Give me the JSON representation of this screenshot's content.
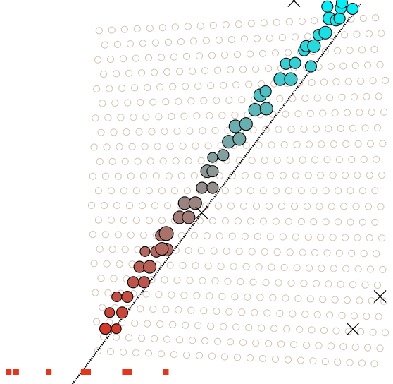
{
  "chart_data": {
    "type": "scatter",
    "title": "",
    "xlabel": "",
    "ylabel": "",
    "xlim": [
      0,
      1
    ],
    "ylim": [
      0,
      1
    ],
    "grid": false,
    "colors": {
      "ring": "#d2c2b4",
      "cluster_low": "#d43a2a",
      "cluster_mid": "#8a9a9a",
      "cluster_high": "#00f0f8",
      "rug": "#e8341a",
      "line": "#000000"
    },
    "fit_line": {
      "x": [
        0.184,
        0.918
      ],
      "y": [
        0.0,
        0.99
      ]
    },
    "cluster_points": [
      {
        "x": 0.268,
        "y": 0.144,
        "s": 8
      },
      {
        "x": 0.296,
        "y": 0.144,
        "s": 7
      },
      {
        "x": 0.279,
        "y": 0.186,
        "s": 7
      },
      {
        "x": 0.311,
        "y": 0.186,
        "s": 8
      },
      {
        "x": 0.297,
        "y": 0.227,
        "s": 7
      },
      {
        "x": 0.324,
        "y": 0.227,
        "s": 8
      },
      {
        "x": 0.339,
        "y": 0.265,
        "s": 8
      },
      {
        "x": 0.367,
        "y": 0.265,
        "s": 8
      },
      {
        "x": 0.355,
        "y": 0.305,
        "s": 8
      },
      {
        "x": 0.381,
        "y": 0.305,
        "s": 9
      },
      {
        "x": 0.369,
        "y": 0.345,
        "s": 7
      },
      {
        "x": 0.398,
        "y": 0.345,
        "s": 8
      },
      {
        "x": 0.41,
        "y": 0.387,
        "s": 8
      },
      {
        "x": 0.424,
        "y": 0.35,
        "s": 9
      },
      {
        "x": 0.423,
        "y": 0.392,
        "s": 10
      },
      {
        "x": 0.412,
        "y": 0.352,
        "s": 9
      },
      {
        "x": 0.457,
        "y": 0.434,
        "s": 9
      },
      {
        "x": 0.48,
        "y": 0.434,
        "s": 9
      },
      {
        "x": 0.47,
        "y": 0.471,
        "s": 9
      },
      {
        "x": 0.497,
        "y": 0.471,
        "s": 9
      },
      {
        "x": 0.514,
        "y": 0.511,
        "s": 8
      },
      {
        "x": 0.541,
        "y": 0.511,
        "s": 8
      },
      {
        "x": 0.527,
        "y": 0.554,
        "s": 9
      },
      {
        "x": 0.541,
        "y": 0.554,
        "s": 8
      },
      {
        "x": 0.541,
        "y": 0.59,
        "s": 7
      },
      {
        "x": 0.568,
        "y": 0.596,
        "s": 8
      },
      {
        "x": 0.582,
        "y": 0.631,
        "s": 9
      },
      {
        "x": 0.609,
        "y": 0.638,
        "s": 9
      },
      {
        "x": 0.599,
        "y": 0.671,
        "s": 9
      },
      {
        "x": 0.626,
        "y": 0.677,
        "s": 9
      },
      {
        "x": 0.649,
        "y": 0.714,
        "s": 9
      },
      {
        "x": 0.678,
        "y": 0.717,
        "s": 9
      },
      {
        "x": 0.662,
        "y": 0.752,
        "s": 9
      },
      {
        "x": 0.676,
        "y": 0.762,
        "s": 8
      },
      {
        "x": 0.713,
        "y": 0.794,
        "s": 9
      },
      {
        "x": 0.74,
        "y": 0.794,
        "s": 9
      },
      {
        "x": 0.728,
        "y": 0.834,
        "s": 8
      },
      {
        "x": 0.751,
        "y": 0.836,
        "s": 8
      },
      {
        "x": 0.774,
        "y": 0.869,
        "s": 8
      },
      {
        "x": 0.791,
        "y": 0.827,
        "s": 8
      },
      {
        "x": 0.779,
        "y": 0.88,
        "s": 8
      },
      {
        "x": 0.799,
        "y": 0.88,
        "s": 9
      },
      {
        "x": 0.811,
        "y": 0.909,
        "s": 8
      },
      {
        "x": 0.828,
        "y": 0.915,
        "s": 9
      },
      {
        "x": 0.838,
        "y": 0.952,
        "s": 9
      },
      {
        "x": 0.855,
        "y": 0.947,
        "s": 8
      },
      {
        "x": 0.864,
        "y": 0.952,
        "s": 8
      },
      {
        "x": 0.833,
        "y": 0.983,
        "s": 8
      },
      {
        "x": 0.867,
        "y": 0.979,
        "s": 8
      },
      {
        "x": 0.897,
        "y": 0.977,
        "s": 8
      },
      {
        "x": 0.87,
        "y": 0.993,
        "s": 8
      }
    ],
    "cross_points": [
      {
        "x": 0.748,
        "y": 0.998
      },
      {
        "x": 0.513,
        "y": 0.446
      },
      {
        "x": 0.967,
        "y": 0.228
      },
      {
        "x": 0.898,
        "y": 0.143
      }
    ],
    "rug_points": [
      0.022,
      0.041,
      0.124,
      0.213,
      0.224,
      0.318,
      0.328,
      0.422
    ]
  }
}
